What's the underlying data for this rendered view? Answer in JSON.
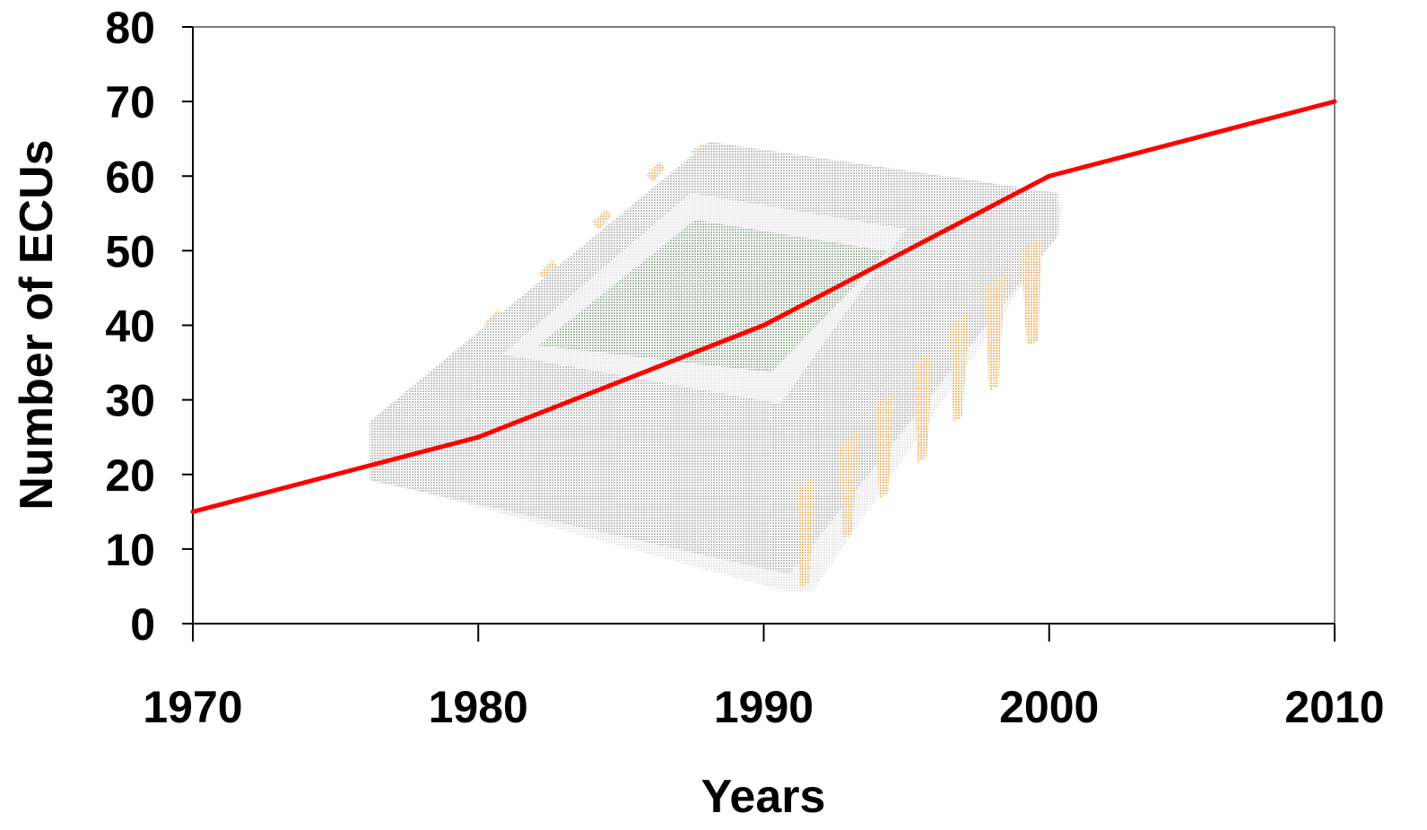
{
  "chart_data": {
    "type": "line",
    "xlabel": "Years",
    "ylabel": "Number of ECUs",
    "x": [
      1970,
      1980,
      1990,
      2000,
      2010
    ],
    "series": [
      {
        "values": [
          15,
          25,
          40,
          60,
          70
        ],
        "color": "#ff0000"
      }
    ],
    "xlim": [
      1970,
      2010
    ],
    "ylim": [
      0,
      80
    ],
    "xticks": [
      "1970",
      "1980",
      "1990",
      "2000",
      "2010"
    ],
    "yticks": [
      "0",
      "10",
      "20",
      "30",
      "40",
      "50",
      "60",
      "70",
      "80"
    ],
    "grid": false,
    "legend": "none",
    "background_image": "microchip-illustration"
  }
}
